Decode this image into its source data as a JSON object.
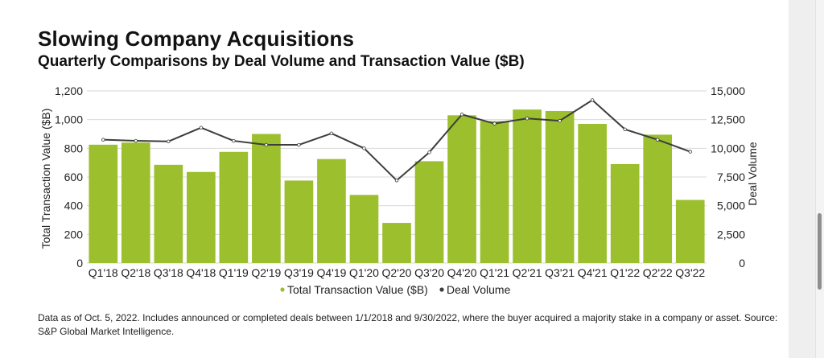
{
  "title": "Slowing Company Acquisitions",
  "subtitle": "Quarterly Comparisons by Deal Volume and Transaction Value ($B)",
  "note": "Data as of Oct. 5, 2022. Includes announced or completed deals between 1/1/2018 and 9/30/2022, where the buyer acquired a majority stake in a company or asset. Source: S&P Global Market Intelligence.",
  "colors": {
    "bar": "#9bbf2d",
    "line": "#3d3d3d",
    "grid": "#d9d9d9"
  },
  "chart_data": {
    "type": "bar+line",
    "categories": [
      "Q1'18",
      "Q2'18",
      "Q3'18",
      "Q4'18",
      "Q1'19",
      "Q2'19",
      "Q3'19",
      "Q4'19",
      "Q1'20",
      "Q2'20",
      "Q3'20",
      "Q4'20",
      "Q1'21",
      "Q2'21",
      "Q3'21",
      "Q4'21",
      "Q1'22",
      "Q2'22",
      "Q3'22"
    ],
    "series": [
      {
        "name": "Total Transaction Value ($B)",
        "type": "bar",
        "axis": "left",
        "values": [
          825,
          840,
          685,
          635,
          775,
          900,
          575,
          725,
          475,
          280,
          710,
          1030,
          990,
          1070,
          1060,
          970,
          690,
          895,
          440
        ]
      },
      {
        "name": "Deal Volume",
        "type": "line",
        "axis": "right",
        "values": [
          10750,
          10650,
          10600,
          11800,
          10650,
          10300,
          10300,
          11300,
          10000,
          7200,
          9650,
          12950,
          12150,
          12600,
          12400,
          14200,
          11650,
          10750,
          9700
        ]
      }
    ],
    "ylabel": "Total Transaction Value ($B)",
    "y2label": "Deal Volume",
    "ylim": [
      0,
      1200
    ],
    "y2lim": [
      0,
      15000
    ],
    "yticks": [
      "0",
      "200",
      "400",
      "600",
      "800",
      "1,000",
      "1,200"
    ],
    "y2ticks": [
      "0",
      "2,500",
      "5,000",
      "7,500",
      "10,000",
      "12,500",
      "15,000"
    ],
    "legend": [
      "Total Transaction Value ($B)",
      "Deal Volume"
    ],
    "grid": true,
    "legend_position": "bottom"
  }
}
